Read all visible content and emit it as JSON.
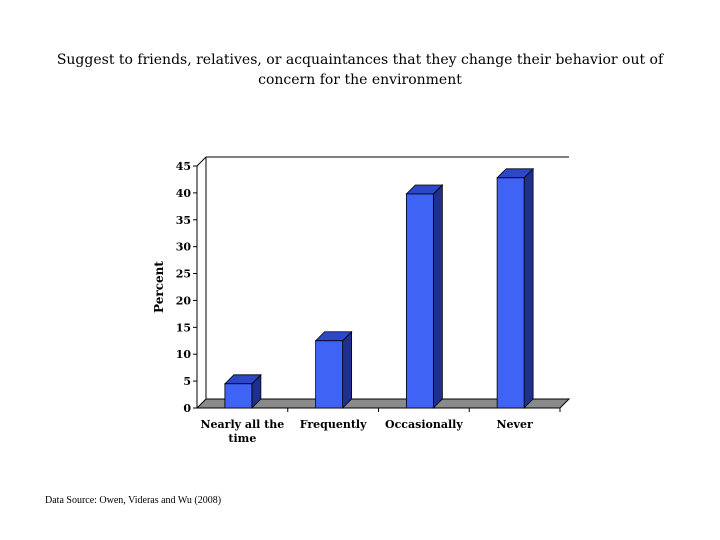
{
  "chart_data": {
    "type": "bar",
    "title": "Suggest to friends, relatives, or acquaintances that they change their behavior out of concern for the environment",
    "categories": [
      "Nearly all the time",
      "Frequently",
      "Occasionally",
      "Never"
    ],
    "values": [
      4.5,
      12.5,
      39.8,
      42.8
    ],
    "ylabel": "Percent",
    "xlabel": "",
    "ylim": [
      0,
      45
    ],
    "yticks": [
      0,
      5,
      10,
      15,
      20,
      25,
      30,
      35,
      40,
      45
    ],
    "grid": false,
    "legend": "none",
    "bar_color": "#3f63f5",
    "bar_side_color": "#1f2f8f",
    "bar_top_color": "#2c47c9",
    "floor_color": "#8a8a8a"
  },
  "source_text": "Data Source: Owen, Videras and Wu (2008)"
}
